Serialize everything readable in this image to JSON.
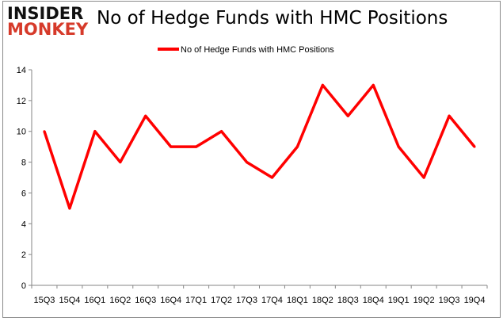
{
  "logo": {
    "line1": "INSIDER",
    "line2": "MONKEY"
  },
  "chart_data": {
    "type": "line",
    "title": "No of Hedge Funds with HMC Positions",
    "categories": [
      "15Q3",
      "15Q4",
      "16Q1",
      "16Q2",
      "16Q3",
      "16Q4",
      "17Q1",
      "17Q2",
      "17Q3",
      "17Q4",
      "18Q1",
      "18Q2",
      "18Q3",
      "18Q4",
      "19Q1",
      "19Q2",
      "19Q3",
      "19Q4"
    ],
    "series": [
      {
        "name": "No of Hedge Funds with HMC Positions",
        "values": [
          10,
          5,
          10,
          8,
          11,
          9,
          9,
          10,
          8,
          7,
          9,
          13,
          11,
          13,
          9,
          7,
          11,
          9
        ],
        "color": "#ff0000"
      }
    ],
    "ylim": [
      0,
      14
    ],
    "yticks": [
      0,
      2,
      4,
      6,
      8,
      10,
      12,
      14
    ],
    "grid": false,
    "legend": "top"
  }
}
